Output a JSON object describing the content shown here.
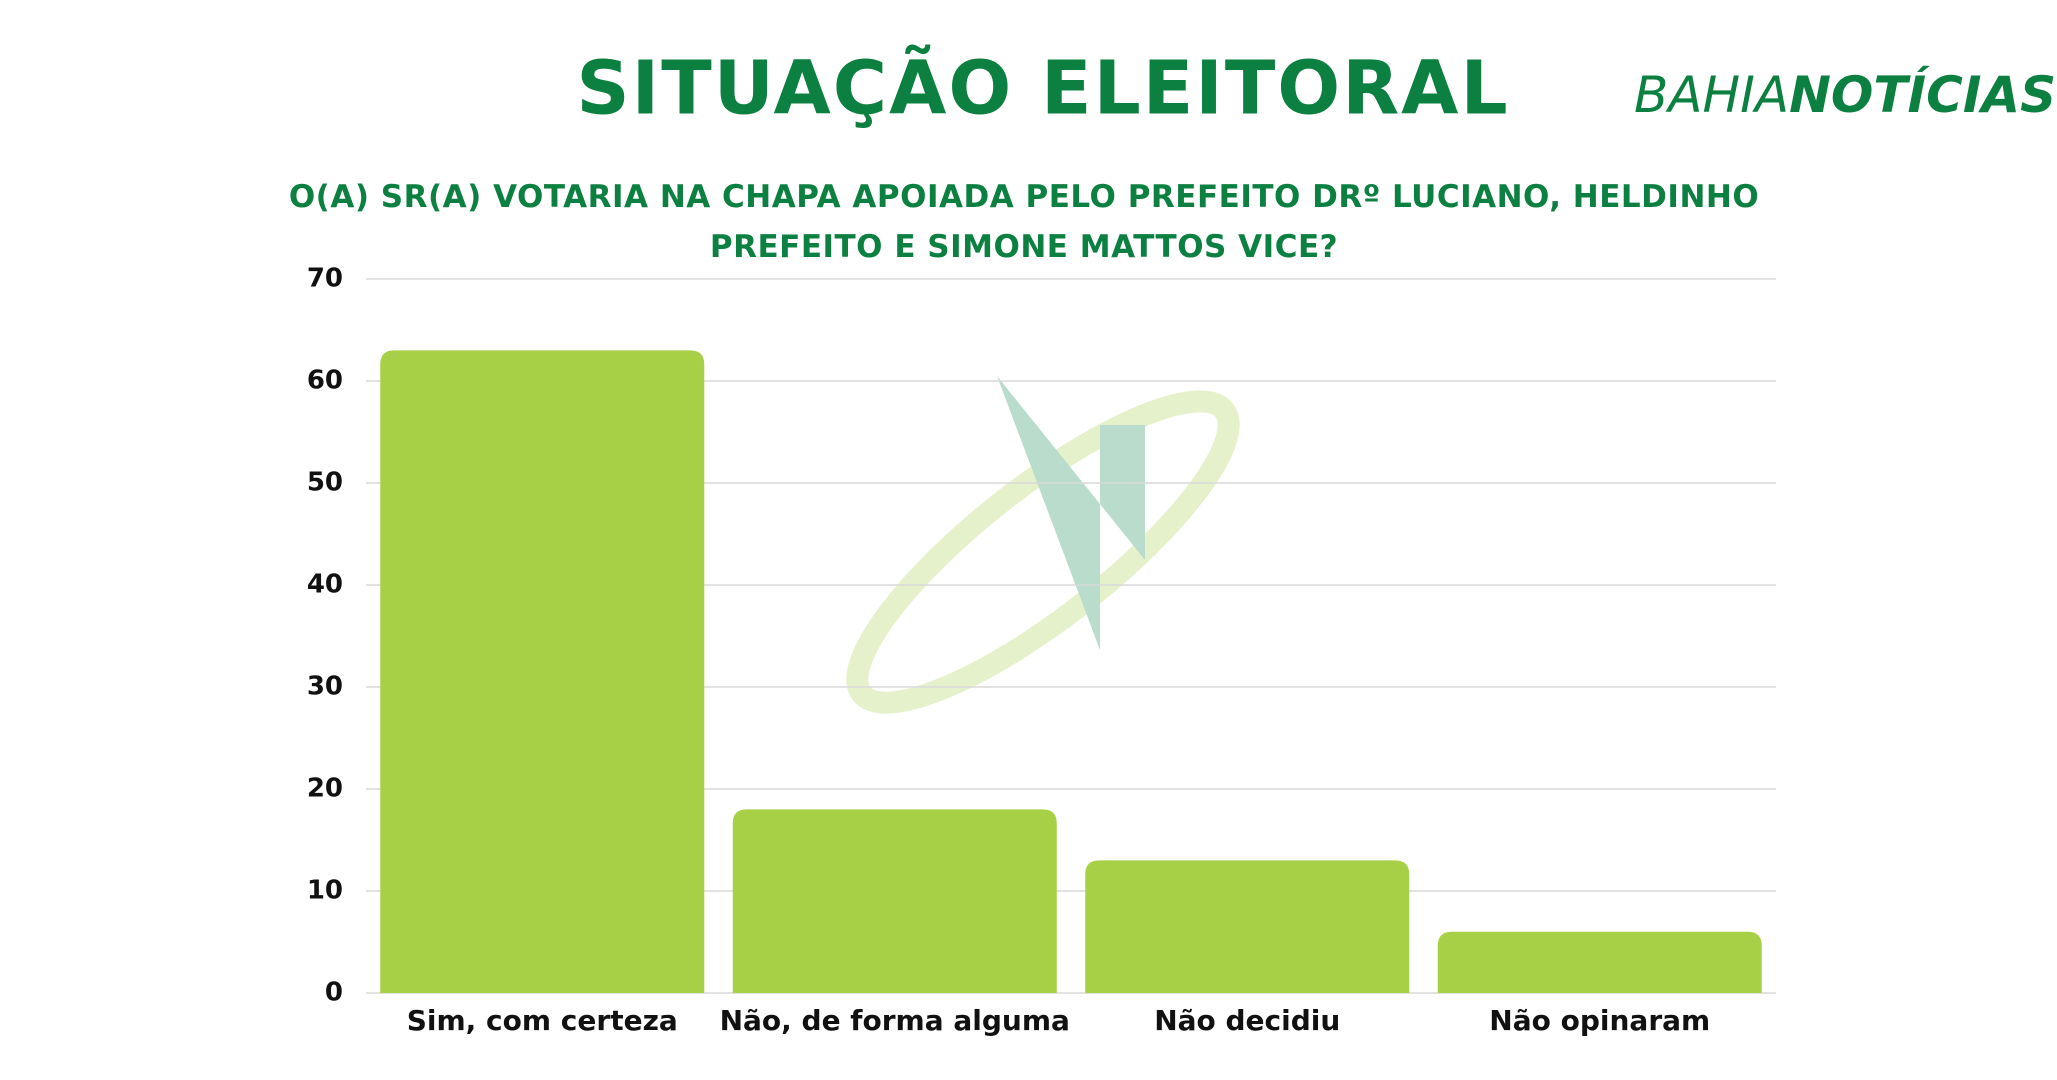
{
  "chart_data": {
    "type": "bar",
    "title": "SITUAÇÃO ELEITORAL",
    "subtitle": "O(A) SR(A) VOTARIA NA CHAPA APOIADA PELO PREFEITO DRº LUCIANO, HELDINHO PREFEITO E SIMONE MATTOS VICE?",
    "logo": [
      "BAHIA",
      "NOTÍCIAS"
    ],
    "categories": [
      "Sim, com certeza",
      "Não, de forma alguma",
      "Não decidiu",
      "Não opinaram"
    ],
    "values": [
      63,
      18,
      13,
      6
    ],
    "color": "#a8d046",
    "ylim": [
      0,
      70
    ],
    "yticks": [
      0,
      10,
      20,
      30,
      40,
      50,
      60,
      70
    ],
    "grid": true
  }
}
